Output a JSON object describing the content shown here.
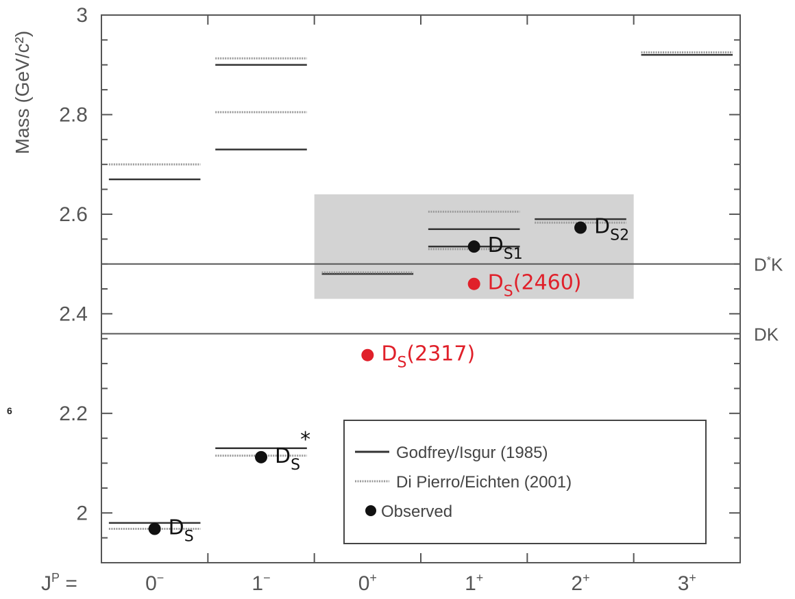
{
  "chart_data": {
    "type": "scatter",
    "ylabel": "Mass (GeV/c²)",
    "xlabel_prefix": "J",
    "xlabel_sup": "P",
    "xlabel_suffix": " =",
    "categories": [
      {
        "base": "0",
        "sup": "−"
      },
      {
        "base": "1",
        "sup": "−"
      },
      {
        "base": "0",
        "sup": "+"
      },
      {
        "base": "1",
        "sup": "+"
      },
      {
        "base": "2",
        "sup": "+"
      },
      {
        "base": "3",
        "sup": "+"
      }
    ],
    "ylim": [
      1.9,
      3.0
    ],
    "yticks": [
      {
        "value": 2.0,
        "label": "2"
      },
      {
        "value": 2.2,
        "label": "2.2"
      },
      {
        "value": 2.4,
        "label": "2.4"
      },
      {
        "value": 2.6,
        "label": "2.6"
      },
      {
        "value": 2.8,
        "label": "2.8"
      },
      {
        "value": 3.0,
        "label": "3"
      }
    ],
    "series": [
      {
        "name": "Godfrey/Isgur (1985)",
        "style": "solid",
        "color": "#333333",
        "points": [
          {
            "cat": 0,
            "mass": 2.67
          },
          {
            "cat": 0,
            "mass": 1.98
          },
          {
            "cat": 1,
            "mass": 2.73
          },
          {
            "cat": 1,
            "mass": 2.9
          },
          {
            "cat": 1,
            "mass": 2.13
          },
          {
            "cat": 2,
            "mass": 2.48
          },
          {
            "cat": 3,
            "mass": 2.57
          },
          {
            "cat": 3,
            "mass": 2.535
          },
          {
            "cat": 4,
            "mass": 2.59
          },
          {
            "cat": 5,
            "mass": 2.92
          }
        ]
      },
      {
        "name": "Di Pierro/Eichten (2001)",
        "style": "dotted",
        "color": "#999999",
        "points": [
          {
            "cat": 0,
            "mass": 2.7
          },
          {
            "cat": 0,
            "mass": 1.968
          },
          {
            "cat": 1,
            "mass": 2.805
          },
          {
            "cat": 1,
            "mass": 2.913
          },
          {
            "cat": 1,
            "mass": 2.115
          },
          {
            "cat": 2,
            "mass": 2.483
          },
          {
            "cat": 3,
            "mass": 2.605
          },
          {
            "cat": 3,
            "mass": 2.53
          },
          {
            "cat": 4,
            "mass": 2.583
          },
          {
            "cat": 5,
            "mass": 2.925
          }
        ]
      },
      {
        "name": "Observed",
        "style": "marker",
        "color": "#111111",
        "points": [
          {
            "cat": 0,
            "mass": 1.968
          },
          {
            "cat": 1,
            "mass": 2.112
          },
          {
            "cat": 3,
            "mass": 2.535
          },
          {
            "cat": 4,
            "mass": 2.573
          },
          {
            "cat": 2,
            "mass": 2.317,
            "offset": 0.5
          },
          {
            "cat": 3,
            "mass": 2.46
          }
        ]
      }
    ],
    "observed_colors": [
      "#111111",
      "#111111",
      "#111111",
      "#111111",
      "#e0202a",
      "#e0202a"
    ],
    "thresholds": [
      {
        "label_main": "D",
        "label_sup": "*",
        "label_tail": "K",
        "mass": 2.5
      },
      {
        "label_main": "DK",
        "label_sup": "",
        "label_tail": "",
        "mass": 2.36
      }
    ],
    "shaded_region": {
      "cat_from": 1.5,
      "cat_to": 4.5,
      "mass_from": 2.43,
      "mass_to": 2.64,
      "color": "#d3d3d3"
    },
    "state_labels": [
      {
        "main": "D",
        "sub": "S",
        "sup": "",
        "tail": "",
        "color": "#111111",
        "cat": 0,
        "mass": 1.968
      },
      {
        "main": "D",
        "sub": "S",
        "sup": "*",
        "tail": "",
        "color": "#111111",
        "cat": 1,
        "mass": 2.112
      },
      {
        "main": "D",
        "sub": "S1",
        "sup": "",
        "tail": "",
        "color": "#111111",
        "cat": 3,
        "mass": 2.535
      },
      {
        "main": "D",
        "sub": "S2",
        "sup": "",
        "tail": "",
        "color": "#111111",
        "cat": 4,
        "mass": 2.573
      },
      {
        "main": "D",
        "sub": "S",
        "sup": "",
        "tail": "(2317)",
        "color": "#e0202a",
        "cat": 2,
        "mass": 2.317
      },
      {
        "main": "D",
        "sub": "S",
        "sup": "",
        "tail": "(2460)",
        "color": "#e0202a",
        "cat": 3,
        "mass": 2.46
      }
    ],
    "legend": {
      "position": "bottom-right",
      "entries": [
        "Godfrey/Isgur (1985)",
        "Di Pierro/Eichten (2001)",
        "Observed"
      ]
    },
    "margin_mark": "6"
  }
}
